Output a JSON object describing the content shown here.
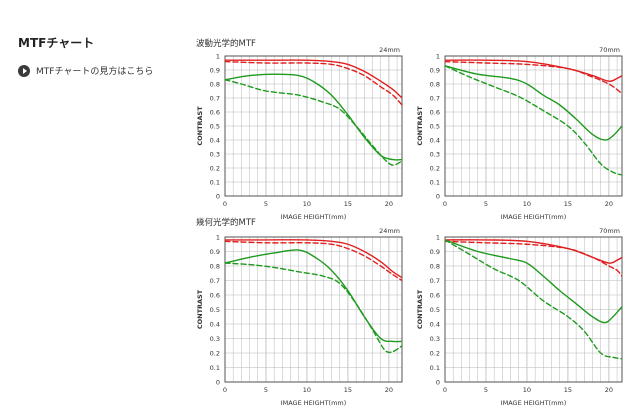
{
  "page": {
    "title": "MTFチャート",
    "howto_link": "MTFチャートの見方はこちら"
  },
  "sections": {
    "wave": "波動光学的MTF",
    "geo": "幾何光学的MTF"
  },
  "colors": {
    "red": "#e02020",
    "green": "#1e9a1e",
    "grid": "#b8b8b8",
    "frame": "#444444"
  },
  "chart_data": [
    {
      "type": "line",
      "section": "波動光学的MTF",
      "focal": "24mm",
      "xlabel": "IMAGE HEIGHT(mm)",
      "ylabel": "CONTRAST",
      "xlim": [
        0,
        21.6
      ],
      "ylim": [
        0,
        1
      ],
      "xticks": [
        0,
        5,
        10,
        15,
        20
      ],
      "yticks": [
        "0",
        "0.1",
        "0.2",
        "0.3",
        "0.4",
        "0.5",
        "0.6",
        "0.7",
        "0.8",
        "0.9",
        "1"
      ],
      "series": [
        {
          "color": "red",
          "dash": false,
          "x": [
            0,
            5,
            10,
            13,
            15,
            17,
            19,
            20.5,
            21.6
          ],
          "y": [
            0.97,
            0.97,
            0.97,
            0.96,
            0.94,
            0.89,
            0.82,
            0.76,
            0.7
          ]
        },
        {
          "color": "red",
          "dash": true,
          "x": [
            0,
            5,
            10,
            13,
            15,
            17,
            19,
            20.5,
            21.6
          ],
          "y": [
            0.96,
            0.95,
            0.95,
            0.94,
            0.91,
            0.86,
            0.78,
            0.72,
            0.65
          ]
        },
        {
          "color": "green",
          "dash": false,
          "x": [
            0,
            3,
            6,
            9,
            11,
            13,
            15,
            17,
            19,
            20.5,
            21.6
          ],
          "y": [
            0.83,
            0.86,
            0.87,
            0.86,
            0.81,
            0.72,
            0.58,
            0.42,
            0.29,
            0.26,
            0.26
          ]
        },
        {
          "color": "green",
          "dash": true,
          "x": [
            0,
            2,
            5,
            9,
            12,
            14,
            16,
            18,
            19.5,
            20.5,
            21.6
          ],
          "y": [
            0.83,
            0.8,
            0.75,
            0.72,
            0.67,
            0.62,
            0.5,
            0.36,
            0.26,
            0.22,
            0.25
          ]
        }
      ]
    },
    {
      "type": "line",
      "section": "波動光学的MTF",
      "focal": "70mm",
      "xlabel": "IMAGE HEIGHT(mm)",
      "ylabel": "CONTRAST",
      "xlim": [
        0,
        21.6
      ],
      "ylim": [
        0,
        1
      ],
      "xticks": [
        0,
        5,
        10,
        15,
        20
      ],
      "yticks": [
        "0",
        "0.1",
        "0.2",
        "0.3",
        "0.4",
        "0.5",
        "0.6",
        "0.7",
        "0.8",
        "0.9",
        "1"
      ],
      "series": [
        {
          "color": "red",
          "dash": false,
          "x": [
            0,
            5,
            10,
            15,
            18,
            20,
            21,
            21.6
          ],
          "y": [
            0.97,
            0.97,
            0.96,
            0.91,
            0.86,
            0.82,
            0.84,
            0.86
          ]
        },
        {
          "color": "red",
          "dash": true,
          "x": [
            0,
            5,
            10,
            15,
            18,
            20,
            21,
            21.6
          ],
          "y": [
            0.96,
            0.95,
            0.94,
            0.91,
            0.85,
            0.8,
            0.76,
            0.73
          ]
        },
        {
          "color": "green",
          "dash": false,
          "x": [
            0,
            4,
            8,
            10,
            12,
            14,
            16,
            18,
            19.5,
            20.5,
            21.6
          ],
          "y": [
            0.93,
            0.87,
            0.84,
            0.8,
            0.72,
            0.65,
            0.55,
            0.44,
            0.4,
            0.43,
            0.5
          ]
        },
        {
          "color": "green",
          "dash": true,
          "x": [
            0,
            3,
            6,
            9,
            12,
            15,
            17,
            19,
            20.5,
            21.6
          ],
          "y": [
            0.93,
            0.85,
            0.78,
            0.71,
            0.61,
            0.5,
            0.38,
            0.23,
            0.17,
            0.15
          ]
        }
      ]
    },
    {
      "type": "line",
      "section": "幾何光学的MTF",
      "focal": "24mm",
      "xlabel": "IMAGE HEIGHT(mm)",
      "ylabel": "CONTRAST",
      "xlim": [
        0,
        21.6
      ],
      "ylim": [
        0,
        1
      ],
      "xticks": [
        0,
        5,
        10,
        15,
        20
      ],
      "yticks": [
        "0",
        "0.1",
        "0.2",
        "0.3",
        "0.4",
        "0.5",
        "0.6",
        "0.7",
        "0.8",
        "0.9",
        "1"
      ],
      "series": [
        {
          "color": "red",
          "dash": false,
          "x": [
            0,
            5,
            10,
            13,
            15,
            17,
            19,
            20.5,
            21.6
          ],
          "y": [
            0.98,
            0.98,
            0.98,
            0.97,
            0.95,
            0.9,
            0.83,
            0.76,
            0.72
          ]
        },
        {
          "color": "red",
          "dash": true,
          "x": [
            0,
            5,
            10,
            13,
            15,
            17,
            19,
            20.5,
            21.6
          ],
          "y": [
            0.97,
            0.96,
            0.96,
            0.95,
            0.92,
            0.87,
            0.8,
            0.74,
            0.7
          ]
        },
        {
          "color": "green",
          "dash": false,
          "x": [
            0,
            3,
            6,
            9,
            11,
            13,
            15,
            17,
            19,
            20.5,
            21.6
          ],
          "y": [
            0.82,
            0.86,
            0.89,
            0.91,
            0.86,
            0.77,
            0.63,
            0.45,
            0.3,
            0.28,
            0.28
          ]
        },
        {
          "color": "green",
          "dash": true,
          "x": [
            0,
            3,
            6,
            9,
            12,
            14,
            16,
            18,
            19.5,
            20.5,
            21.6
          ],
          "y": [
            0.82,
            0.81,
            0.79,
            0.76,
            0.73,
            0.68,
            0.54,
            0.36,
            0.22,
            0.21,
            0.25
          ]
        }
      ]
    },
    {
      "type": "line",
      "section": "幾何光学的MTF",
      "focal": "70mm",
      "xlabel": "IMAGE HEIGHT(mm)",
      "ylabel": "CONTRAST",
      "xlim": [
        0,
        21.6
      ],
      "ylim": [
        0,
        1
      ],
      "xticks": [
        0,
        5,
        10,
        15,
        20
      ],
      "yticks": [
        "0",
        "0.1",
        "0.2",
        "0.3",
        "0.4",
        "0.5",
        "0.6",
        "0.7",
        "0.8",
        "0.9",
        "1"
      ],
      "series": [
        {
          "color": "red",
          "dash": false,
          "x": [
            0,
            5,
            10,
            15,
            18,
            20,
            21,
            21.6
          ],
          "y": [
            0.98,
            0.98,
            0.97,
            0.92,
            0.86,
            0.82,
            0.84,
            0.86
          ]
        },
        {
          "color": "red",
          "dash": true,
          "x": [
            0,
            5,
            10,
            15,
            18,
            20,
            21,
            21.6
          ],
          "y": [
            0.97,
            0.96,
            0.95,
            0.92,
            0.86,
            0.8,
            0.77,
            0.73
          ]
        },
        {
          "color": "green",
          "dash": false,
          "x": [
            0,
            4,
            8,
            10,
            12,
            14,
            16,
            18,
            19.5,
            20.5,
            21.6
          ],
          "y": [
            0.98,
            0.9,
            0.85,
            0.82,
            0.73,
            0.63,
            0.54,
            0.45,
            0.41,
            0.45,
            0.52
          ]
        },
        {
          "color": "green",
          "dash": true,
          "x": [
            0,
            3,
            6,
            9,
            12,
            15,
            17,
            19,
            20.5,
            21.6
          ],
          "y": [
            0.98,
            0.88,
            0.78,
            0.7,
            0.56,
            0.45,
            0.35,
            0.2,
            0.17,
            0.16
          ]
        }
      ]
    }
  ]
}
